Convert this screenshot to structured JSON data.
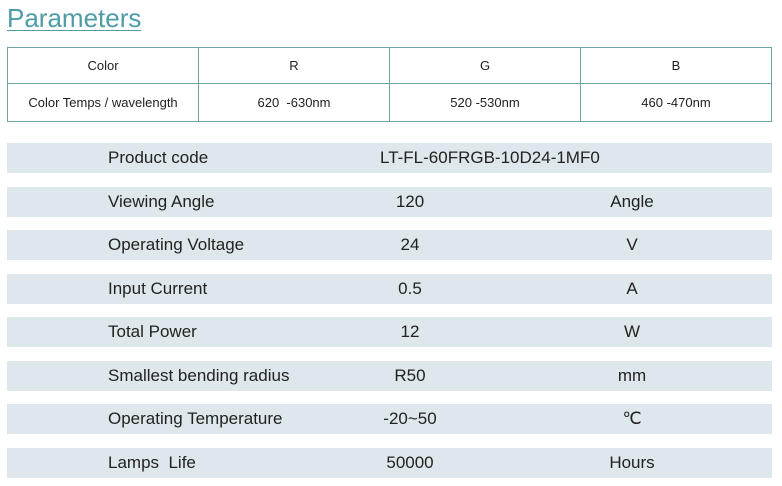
{
  "title": "Parameters",
  "color_table": {
    "header": [
      "Color",
      "R",
      "G",
      "B"
    ],
    "rows": [
      [
        "Color Temps / wavelength",
        "620  -630nm",
        "520 -530nm",
        "460 -470nm"
      ]
    ]
  },
  "specs": {
    "product_code": {
      "label": "Product code",
      "value": "LT-FL-60FRGB-10D24-1MF0"
    },
    "rows": [
      {
        "label": "Viewing Angle",
        "value": "120",
        "unit": "Angle"
      },
      {
        "label": "Operating Voltage",
        "value": "24",
        "unit": "V"
      },
      {
        "label": "Input Current",
        "value": "0.5",
        "unit": "A"
      },
      {
        "label": "Total Power",
        "value": "12",
        "unit": "W"
      },
      {
        "label": "Smallest bending radius",
        "value": "R50",
        "unit": "mm"
      },
      {
        "label": "Operating Temperature",
        "value": "-20~50",
        "unit": "℃"
      },
      {
        "label": "Lamps  Life",
        "value": "50000",
        "unit": "Hours"
      }
    ]
  }
}
